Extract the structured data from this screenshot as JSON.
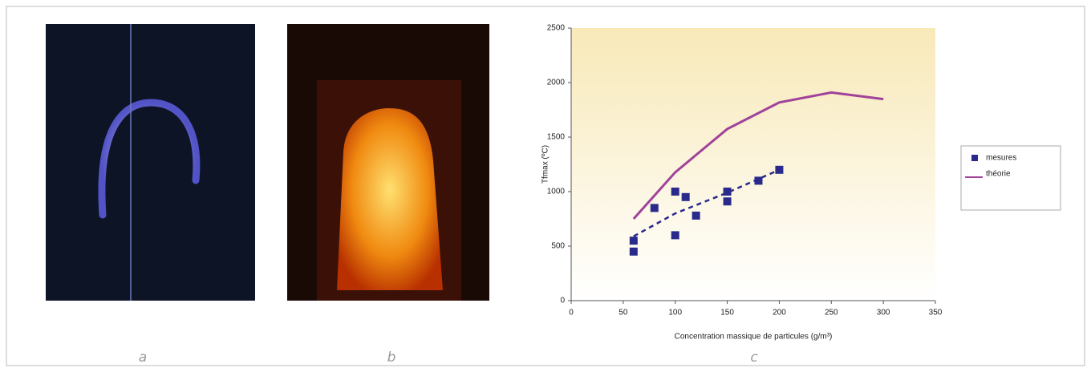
{
  "panel_labels": [
    "a",
    "b",
    "c"
  ],
  "chart_data": {
    "type": "scatter",
    "x_label": "Concentration massique de particules (g/m³)",
    "y_label": "Tfmax (ºC)",
    "xlim": [
      0,
      350
    ],
    "xticks": [
      0,
      50,
      100,
      150,
      200,
      250,
      300,
      350
    ],
    "ylim": [
      0,
      2500
    ],
    "yticks": [
      0,
      500,
      1000,
      1500,
      2000,
      2500
    ],
    "series": [
      {
        "name": "mesures",
        "color": "#2a2a8c",
        "kind": "points",
        "x": [
          60,
          60,
          80,
          100,
          100,
          110,
          120,
          150,
          150,
          180,
          200
        ],
        "values": [
          550,
          450,
          850,
          1000,
          600,
          950,
          780,
          1000,
          910,
          1100,
          1200
        ]
      },
      {
        "name": "théorie",
        "color": "#a0429a",
        "kind": "line",
        "x": [
          60,
          100,
          150,
          200,
          250,
          300
        ],
        "values": [
          750,
          1177,
          1574,
          1818,
          1909,
          1848
        ]
      },
      {
        "color": "#2a2a8c",
        "kind": "dashed",
        "x": [
          60,
          100,
          150,
          200
        ],
        "values": [
          590,
          800,
          990,
          1200
        ]
      }
    ]
  }
}
